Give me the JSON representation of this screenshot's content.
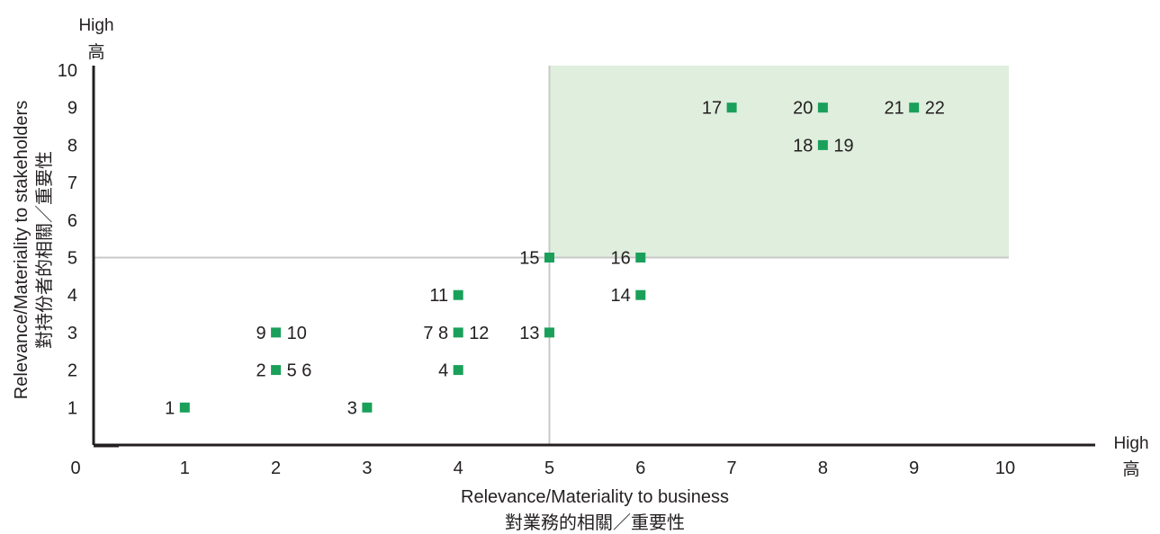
{
  "chart_data": {
    "type": "scatter",
    "title": "",
    "xlabel": "Relevance/Materiality to business",
    "xlabel_zh": "對業務的相關／重要性",
    "ylabel": "Relevance/Materiality to stakeholders",
    "ylabel_zh": "對持份者的相關／重要性",
    "xlim": [
      0,
      10
    ],
    "ylim": [
      0,
      10
    ],
    "x_ticks": [
      "0",
      "1",
      "2",
      "3",
      "4",
      "5",
      "6",
      "7",
      "8",
      "9",
      "10"
    ],
    "y_ticks": [
      "1",
      "2",
      "3",
      "4",
      "5",
      "6",
      "7",
      "8",
      "9",
      "10"
    ],
    "high_label": "High",
    "high_label_zh": "高",
    "grid": false,
    "reference_lines": {
      "x": 5,
      "y": 5
    },
    "highlight_region": {
      "x": [
        5,
        10
      ],
      "y": [
        5,
        10
      ]
    },
    "points": [
      {
        "x": 1,
        "y": 1,
        "left_label": "1",
        "right_label": ""
      },
      {
        "x": 2,
        "y": 2,
        "left_label": "2",
        "right_label": "5 6"
      },
      {
        "x": 3,
        "y": 1,
        "left_label": "3",
        "right_label": ""
      },
      {
        "x": 4,
        "y": 2,
        "left_label": "4",
        "right_label": ""
      },
      {
        "x": 2,
        "y": 3,
        "left_label": "9",
        "right_label": "10"
      },
      {
        "x": 4,
        "y": 3,
        "left_label": "7 8",
        "right_label": "12"
      },
      {
        "x": 4,
        "y": 4,
        "left_label": "11",
        "right_label": ""
      },
      {
        "x": 5,
        "y": 3,
        "left_label": "13",
        "right_label": ""
      },
      {
        "x": 5,
        "y": 5,
        "left_label": "15",
        "right_label": ""
      },
      {
        "x": 6,
        "y": 4,
        "left_label": "14",
        "right_label": ""
      },
      {
        "x": 6,
        "y": 5,
        "left_label": "16",
        "right_label": ""
      },
      {
        "x": 7,
        "y": 9,
        "left_label": "17",
        "right_label": ""
      },
      {
        "x": 8,
        "y": 9,
        "left_label": "20",
        "right_label": ""
      },
      {
        "x": 8,
        "y": 8,
        "left_label": "18",
        "right_label": "19"
      },
      {
        "x": 9,
        "y": 9,
        "left_label": "21",
        "right_label": "22"
      }
    ]
  },
  "colors": {
    "marker": "#1aa05a",
    "highlight_fill": "#dfeedd",
    "reference_line": "#c8c8c8",
    "axis": "#231f20",
    "text": "#231f20"
  }
}
